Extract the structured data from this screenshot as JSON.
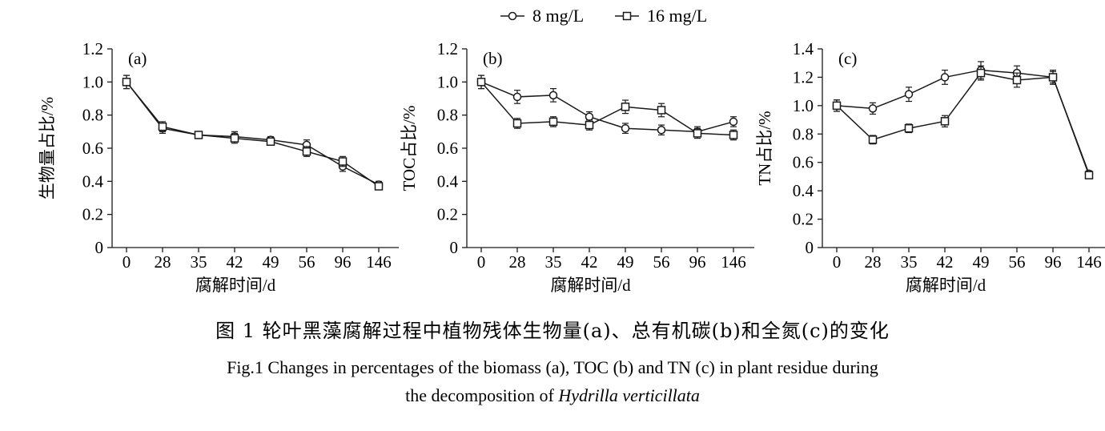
{
  "legend": [
    {
      "name": "8 mg/L",
      "marker": "circle"
    },
    {
      "name": "16 mg/L",
      "marker": "square"
    }
  ],
  "caption": {
    "cn": "图 1 轮叶黑藻腐解过程中植物残体生物量(a)、总有机碳(b)和全氮(c)的变化",
    "en_line1": "Fig.1 Changes in percentages of the biomass (a), TOC (b) and TN (c) in plant residue during",
    "en_line2_prefix": "the decomposition of ",
    "en_line2_italic": "Hydrilla verticillata"
  },
  "colors": {
    "line": "#1a1a1a",
    "background": "#ffffff"
  },
  "chart_data": [
    {
      "type": "line",
      "panel_label": "(a)",
      "xlabel": "腐解时间/d",
      "ylabel": "生物量占比/%",
      "categories": [
        "0",
        "28",
        "35",
        "42",
        "49",
        "56",
        "96",
        "146"
      ],
      "ylim": [
        0,
        1.2
      ],
      "yticks": [
        "0",
        "0.2",
        "0.4",
        "0.6",
        "0.8",
        "1.0",
        "1.2"
      ],
      "series": [
        {
          "name": "8 mg/L",
          "marker": "circle",
          "values": [
            1.0,
            0.72,
            0.68,
            0.67,
            0.65,
            0.62,
            0.49,
            0.38
          ],
          "errors": [
            0.04,
            0.03,
            0.02,
            0.03,
            0.02,
            0.03,
            0.03,
            0.02
          ]
        },
        {
          "name": "16 mg/L",
          "marker": "square",
          "values": [
            1.0,
            0.73,
            0.68,
            0.66,
            0.64,
            0.58,
            0.52,
            0.37
          ],
          "errors": [
            0.04,
            0.03,
            0.02,
            0.03,
            0.02,
            0.03,
            0.03,
            0.02
          ]
        }
      ]
    },
    {
      "type": "line",
      "panel_label": "(b)",
      "xlabel": "腐解时间/d",
      "ylabel": "TOC占比/%",
      "categories": [
        "0",
        "28",
        "35",
        "42",
        "49",
        "56",
        "96",
        "146"
      ],
      "ylim": [
        0,
        1.2
      ],
      "yticks": [
        "0",
        "0.2",
        "0.4",
        "0.6",
        "0.8",
        "1.0",
        "1.2"
      ],
      "series": [
        {
          "name": "8 mg/L",
          "marker": "circle",
          "values": [
            1.0,
            0.91,
            0.92,
            0.79,
            0.72,
            0.71,
            0.7,
            0.76
          ],
          "errors": [
            0.04,
            0.04,
            0.04,
            0.03,
            0.03,
            0.03,
            0.03,
            0.03
          ]
        },
        {
          "name": "16 mg/L",
          "marker": "square",
          "values": [
            1.0,
            0.75,
            0.76,
            0.74,
            0.85,
            0.83,
            0.69,
            0.68
          ],
          "errors": [
            0.04,
            0.03,
            0.03,
            0.03,
            0.04,
            0.04,
            0.03,
            0.03
          ]
        }
      ]
    },
    {
      "type": "line",
      "panel_label": "(c)",
      "xlabel": "腐解时间/d",
      "ylabel": "TN占比/%",
      "categories": [
        "0",
        "28",
        "35",
        "42",
        "49",
        "56",
        "96",
        "146"
      ],
      "ylim": [
        0,
        1.4
      ],
      "yticks": [
        "0",
        "0.2",
        "0.4",
        "0.6",
        "0.8",
        "1.0",
        "1.2",
        "1.4"
      ],
      "series": [
        {
          "name": "8 mg/L",
          "marker": "circle",
          "values": [
            1.0,
            0.98,
            1.08,
            1.2,
            1.25,
            1.23,
            1.2,
            0.52
          ],
          "errors": [
            0.04,
            0.04,
            0.05,
            0.05,
            0.06,
            0.05,
            0.04,
            0.02
          ]
        },
        {
          "name": "16 mg/L",
          "marker": "square",
          "values": [
            1.0,
            0.76,
            0.84,
            0.89,
            1.23,
            1.18,
            1.2,
            0.51
          ],
          "errors": [
            0.04,
            0.03,
            0.03,
            0.04,
            0.05,
            0.05,
            0.05,
            0.02
          ]
        }
      ]
    }
  ]
}
